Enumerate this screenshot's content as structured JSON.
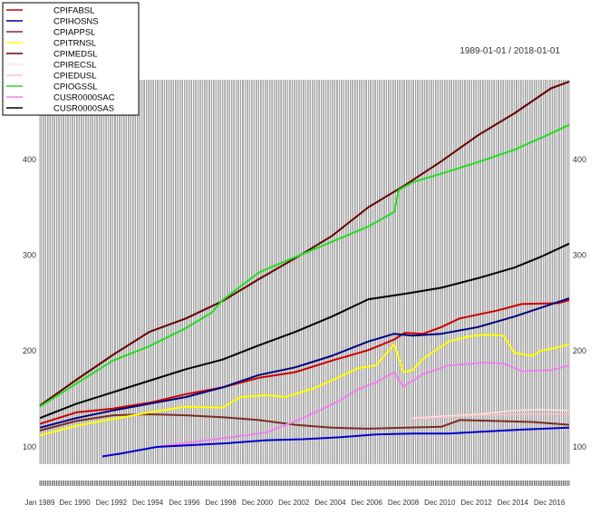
{
  "chart_data": {
    "type": "line",
    "date_range": "1989-01-01 / 2018-01-01",
    "xlim": [
      "1989-01-01",
      "2018-01-01"
    ],
    "ylim": [
      82,
      483
    ],
    "yticks": [
      100,
      200,
      300,
      400
    ],
    "grid": "vertical",
    "legend_position": "top-left",
    "x_tick_labels": [
      {
        "label": "Jan 1989",
        "date": "1989-01-01"
      },
      {
        "label": "Dec 1990",
        "date": "1990-12-01"
      },
      {
        "label": "Dec 1992",
        "date": "1992-12-01"
      },
      {
        "label": "Dec 1994",
        "date": "1994-12-01"
      },
      {
        "label": "Dec 1996",
        "date": "1996-12-01"
      },
      {
        "label": "Dec 1998",
        "date": "1998-12-01"
      },
      {
        "label": "Dec 2000",
        "date": "2000-12-01"
      },
      {
        "label": "Dec 2002",
        "date": "2002-12-01"
      },
      {
        "label": "Dec 2004",
        "date": "2004-12-01"
      },
      {
        "label": "Dec 2006",
        "date": "2006-12-01"
      },
      {
        "label": "Dec 2008",
        "date": "2008-12-01"
      },
      {
        "label": "Dec 2010",
        "date": "2010-12-01"
      },
      {
        "label": "Dec 2012",
        "date": "2012-12-01"
      },
      {
        "label": "Dec 2014",
        "date": "2014-12-01"
      },
      {
        "label": "Dec 2016",
        "date": "2016-12-01"
      }
    ],
    "series": [
      {
        "name": "CPIFABSL",
        "color": "#cc0000",
        "width": 2,
        "points": [
          [
            "1989-01-01",
            124
          ],
          [
            "1991-01-01",
            136
          ],
          [
            "1993-01-01",
            140
          ],
          [
            "1995-01-01",
            146
          ],
          [
            "1997-01-01",
            155
          ],
          [
            "1999-01-01",
            162
          ],
          [
            "2001-01-01",
            172
          ],
          [
            "2003-01-01",
            178
          ],
          [
            "2005-01-01",
            190
          ],
          [
            "2007-01-01",
            201
          ],
          [
            "2008-06-01",
            212
          ],
          [
            "2009-01-01",
            219
          ],
          [
            "2010-01-01",
            218
          ],
          [
            "2011-01-01",
            225
          ],
          [
            "2012-01-01",
            234
          ],
          [
            "2014-01-01",
            242
          ],
          [
            "2015-06-01",
            249
          ],
          [
            "2017-06-01",
            250
          ],
          [
            "2018-01-01",
            253
          ]
        ]
      },
      {
        "name": "CPIHOSNS",
        "color": "#000080",
        "width": 2,
        "points": [
          [
            "1989-01-01",
            120
          ],
          [
            "1991-01-01",
            130
          ],
          [
            "1993-01-01",
            138
          ],
          [
            "1995-01-01",
            145
          ],
          [
            "1997-01-01",
            152
          ],
          [
            "1999-01-01",
            162
          ],
          [
            "2001-01-01",
            175
          ],
          [
            "2003-01-01",
            183
          ],
          [
            "2005-01-01",
            195
          ],
          [
            "2007-01-01",
            210
          ],
          [
            "2008-06-01",
            218
          ],
          [
            "2009-06-01",
            216
          ],
          [
            "2011-01-01",
            218
          ],
          [
            "2013-01-01",
            225
          ],
          [
            "2015-01-01",
            236
          ],
          [
            "2016-06-01",
            245
          ],
          [
            "2018-01-01",
            255
          ]
        ]
      },
      {
        "name": "CPIAPPSL",
        "color": "#7b2d26",
        "width": 2,
        "points": [
          [
            "1989-01-01",
            117
          ],
          [
            "1991-01-01",
            127
          ],
          [
            "1993-01-01",
            133
          ],
          [
            "1995-01-01",
            134
          ],
          [
            "1997-01-01",
            133
          ],
          [
            "1999-01-01",
            131
          ],
          [
            "2001-01-01",
            128
          ],
          [
            "2003-01-01",
            123
          ],
          [
            "2005-01-01",
            120
          ],
          [
            "2007-01-01",
            119
          ],
          [
            "2009-01-01",
            120
          ],
          [
            "2011-01-01",
            121
          ],
          [
            "2012-01-01",
            128
          ],
          [
            "2014-01-01",
            127
          ],
          [
            "2016-01-01",
            126
          ],
          [
            "2018-01-01",
            123
          ]
        ]
      },
      {
        "name": "CPITRNSL",
        "color": "#ffff00",
        "width": 2,
        "points": [
          [
            "1989-01-01",
            112
          ],
          [
            "1991-01-01",
            122
          ],
          [
            "1993-01-01",
            129
          ],
          [
            "1995-01-01",
            136
          ],
          [
            "1997-01-01",
            142
          ],
          [
            "1999-01-01",
            141
          ],
          [
            "2000-01-01",
            152
          ],
          [
            "2001-06-01",
            154
          ],
          [
            "2002-06-01",
            152
          ],
          [
            "2004-01-01",
            161
          ],
          [
            "2005-06-01",
            173
          ],
          [
            "2006-06-01",
            182
          ],
          [
            "2007-06-01",
            185
          ],
          [
            "2008-06-01",
            207
          ],
          [
            "2008-12-01",
            178
          ],
          [
            "2009-06-01",
            180
          ],
          [
            "2010-01-01",
            192
          ],
          [
            "2011-06-01",
            210
          ],
          [
            "2012-06-01",
            215
          ],
          [
            "2013-06-01",
            217
          ],
          [
            "2014-06-01",
            216
          ],
          [
            "2015-01-01",
            198
          ],
          [
            "2016-01-01",
            195
          ],
          [
            "2016-06-01",
            200
          ],
          [
            "2017-06-01",
            204
          ],
          [
            "2018-01-01",
            207
          ]
        ]
      },
      {
        "name": "CPIMEDSL",
        "color": "#660000",
        "width": 2,
        "points": [
          [
            "1989-01-01",
            143
          ],
          [
            "1991-01-01",
            170
          ],
          [
            "1993-01-01",
            196
          ],
          [
            "1995-01-01",
            220
          ],
          [
            "1997-01-01",
            234
          ],
          [
            "1999-01-01",
            252
          ],
          [
            "2001-01-01",
            275
          ],
          [
            "2003-01-01",
            297
          ],
          [
            "2005-01-01",
            320
          ],
          [
            "2007-01-01",
            350
          ],
          [
            "2009-01-01",
            373
          ],
          [
            "2011-01-01",
            398
          ],
          [
            "2013-01-01",
            425
          ],
          [
            "2015-01-01",
            448
          ],
          [
            "2017-01-01",
            474
          ],
          [
            "2018-01-01",
            481
          ]
        ]
      },
      {
        "name": "CPIRECSL",
        "color": "#ffe4e1",
        "width": 1.5,
        "points": [
          [
            "2009-06-01",
            130
          ],
          [
            "2011-01-01",
            132
          ],
          [
            "2013-01-01",
            134
          ],
          [
            "2015-01-01",
            138
          ],
          [
            "2016-06-01",
            139
          ],
          [
            "2018-01-01",
            138
          ]
        ]
      },
      {
        "name": "CPIEDUSL",
        "color": "#ffc0cb",
        "width": 1.5,
        "points": [
          [
            "2009-06-01",
            129
          ],
          [
            "2011-01-01",
            131
          ],
          [
            "2013-01-01",
            133
          ],
          [
            "2015-01-01",
            134
          ],
          [
            "2018-01-01",
            134
          ]
        ]
      },
      {
        "name": "CPIOGSSL",
        "color": "#22dd22",
        "width": 2,
        "points": [
          [
            "1989-01-01",
            142
          ],
          [
            "1991-01-01",
            166
          ],
          [
            "1993-01-01",
            190
          ],
          [
            "1995-01-01",
            205
          ],
          [
            "1997-01-01",
            224
          ],
          [
            "1998-06-01",
            240
          ],
          [
            "1999-01-01",
            253
          ],
          [
            "2001-01-01",
            282
          ],
          [
            "2003-01-01",
            298
          ],
          [
            "2005-01-01",
            314
          ],
          [
            "2007-01-01",
            330
          ],
          [
            "2008-06-01",
            345
          ],
          [
            "2008-09-01",
            368
          ],
          [
            "2009-06-01",
            376
          ],
          [
            "2011-01-01",
            385
          ],
          [
            "2013-01-01",
            397
          ],
          [
            "2015-01-01",
            410
          ],
          [
            "2017-01-01",
            427
          ],
          [
            "2018-01-01",
            436
          ]
        ]
      },
      {
        "name": "CUSR0000SAC",
        "color": "#ee82ee",
        "width": 2,
        "points": [
          [
            "1992-06-01",
            90
          ],
          [
            "1993-06-01",
            93
          ],
          [
            "1995-06-01",
            100
          ],
          [
            "1997-06-01",
            105
          ],
          [
            "1999-06-01",
            110
          ],
          [
            "2001-06-01",
            115
          ],
          [
            "2003-06-01",
            130
          ],
          [
            "2005-06-01",
            148
          ],
          [
            "2006-06-01",
            160
          ],
          [
            "2007-06-01",
            167
          ],
          [
            "2008-06-01",
            178
          ],
          [
            "2008-12-01",
            163
          ],
          [
            "2010-01-01",
            176
          ],
          [
            "2011-06-01",
            185
          ],
          [
            "2013-06-01",
            188
          ],
          [
            "2014-06-01",
            187
          ],
          [
            "2015-06-01",
            179
          ],
          [
            "2017-01-01",
            180
          ],
          [
            "2018-01-01",
            185
          ]
        ]
      },
      {
        "name": "CUSR0000SAS",
        "color": "#000000",
        "width": 2,
        "points": [
          [
            "1989-01-01",
            130
          ],
          [
            "1991-01-01",
            145
          ],
          [
            "1993-01-01",
            157
          ],
          [
            "1995-01-01",
            169
          ],
          [
            "1997-01-01",
            181
          ],
          [
            "1999-01-01",
            191
          ],
          [
            "2001-01-01",
            206
          ],
          [
            "2003-01-01",
            220
          ],
          [
            "2005-01-01",
            236
          ],
          [
            "2007-01-01",
            254
          ],
          [
            "2008-06-01",
            258
          ],
          [
            "2009-06-01",
            261
          ],
          [
            "2011-01-01",
            266
          ],
          [
            "2013-01-01",
            276
          ],
          [
            "2015-01-01",
            287
          ],
          [
            "2016-06-01",
            298
          ],
          [
            "2018-01-01",
            312
          ]
        ]
      },
      {
        "name": "",
        "color": "#0000cd",
        "width": 2,
        "legend": false,
        "points": [
          [
            "1992-06-01",
            90
          ],
          [
            "1993-06-01",
            93
          ],
          [
            "1995-06-01",
            100
          ],
          [
            "1997-06-01",
            102
          ],
          [
            "1999-06-01",
            104
          ],
          [
            "2001-06-01",
            107
          ],
          [
            "2003-06-01",
            108
          ],
          [
            "2005-06-01",
            110
          ],
          [
            "2007-06-01",
            113
          ],
          [
            "2009-06-01",
            114
          ],
          [
            "2011-06-01",
            114
          ],
          [
            "2013-06-01",
            116
          ],
          [
            "2015-06-01",
            118
          ],
          [
            "2018-01-01",
            120
          ]
        ]
      }
    ]
  }
}
